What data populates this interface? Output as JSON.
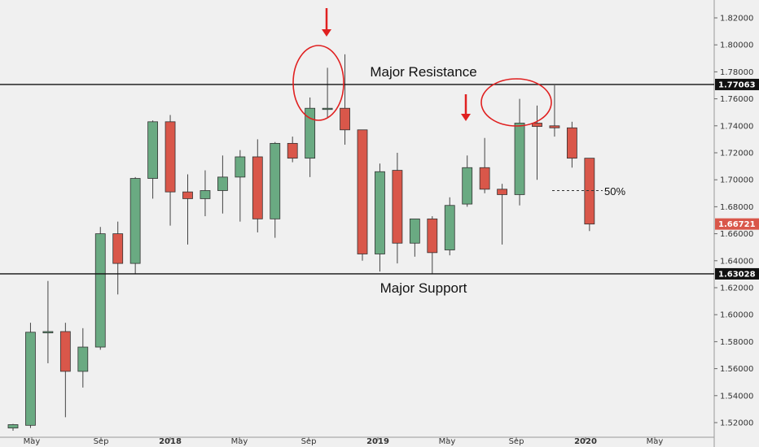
{
  "chart_data": {
    "type": "candlestick",
    "x_ticks": [
      "May",
      "Sep",
      "2018",
      "May",
      "Sep",
      "2019",
      "May",
      "Sep",
      "2020",
      "May"
    ],
    "y_ticks": [
      "1.52000",
      "1.54000",
      "1.56000",
      "1.58000",
      "1.60000",
      "1.62000",
      "1.64000",
      "1.66000",
      "1.68000",
      "1.70000",
      "1.72000",
      "1.74000",
      "1.76000",
      "1.78000",
      "1.80000",
      "1.82000"
    ],
    "ylim": [
      1.5155,
      1.8285
    ],
    "candles": [
      {
        "o": 1.516,
        "h": 1.519,
        "l": 1.514,
        "c": 1.5185
      },
      {
        "o": 1.518,
        "h": 1.594,
        "l": 1.516,
        "c": 1.587
      },
      {
        "o": 1.5865,
        "h": 1.625,
        "l": 1.564,
        "c": 1.5875
      },
      {
        "o": 1.5875,
        "h": 1.594,
        "l": 1.524,
        "c": 1.558
      },
      {
        "o": 1.558,
        "h": 1.59,
        "l": 1.546,
        "c": 1.576
      },
      {
        "o": 1.576,
        "h": 1.665,
        "l": 1.574,
        "c": 1.66
      },
      {
        "o": 1.66,
        "h": 1.669,
        "l": 1.615,
        "c": 1.638
      },
      {
        "o": 1.638,
        "h": 1.702,
        "l": 1.63,
        "c": 1.701
      },
      {
        "o": 1.701,
        "h": 1.744,
        "l": 1.686,
        "c": 1.743
      },
      {
        "o": 1.743,
        "h": 1.748,
        "l": 1.666,
        "c": 1.691
      },
      {
        "o": 1.691,
        "h": 1.704,
        "l": 1.652,
        "c": 1.686
      },
      {
        "o": 1.686,
        "h": 1.707,
        "l": 1.673,
        "c": 1.692
      },
      {
        "o": 1.692,
        "h": 1.718,
        "l": 1.675,
        "c": 1.702
      },
      {
        "o": 1.702,
        "h": 1.722,
        "l": 1.669,
        "c": 1.717
      },
      {
        "o": 1.717,
        "h": 1.73,
        "l": 1.661,
        "c": 1.671
      },
      {
        "o": 1.671,
        "h": 1.728,
        "l": 1.657,
        "c": 1.727
      },
      {
        "o": 1.727,
        "h": 1.732,
        "l": 1.713,
        "c": 1.716
      },
      {
        "o": 1.716,
        "h": 1.761,
        "l": 1.702,
        "c": 1.753
      },
      {
        "o": 1.753,
        "h": 1.783,
        "l": 1.746,
        "c": 1.753
      },
      {
        "o": 1.753,
        "h": 1.793,
        "l": 1.726,
        "c": 1.737
      },
      {
        "o": 1.737,
        "h": 1.736,
        "l": 1.64,
        "c": 1.645
      },
      {
        "o": 1.645,
        "h": 1.712,
        "l": 1.632,
        "c": 1.706
      },
      {
        "o": 1.707,
        "h": 1.72,
        "l": 1.638,
        "c": 1.653
      },
      {
        "o": 1.653,
        "h": 1.671,
        "l": 1.643,
        "c": 1.671
      },
      {
        "o": 1.671,
        "h": 1.673,
        "l": 1.63,
        "c": 1.646
      },
      {
        "o": 1.648,
        "h": 1.687,
        "l": 1.644,
        "c": 1.681
      },
      {
        "o": 1.682,
        "h": 1.718,
        "l": 1.68,
        "c": 1.709
      },
      {
        "o": 1.709,
        "h": 1.731,
        "l": 1.69,
        "c": 1.693
      },
      {
        "o": 1.693,
        "h": 1.697,
        "l": 1.652,
        "c": 1.689
      },
      {
        "o": 1.689,
        "h": 1.76,
        "l": 1.681,
        "c": 1.742
      },
      {
        "o": 1.742,
        "h": 1.755,
        "l": 1.7,
        "c": 1.7395
      },
      {
        "o": 1.74,
        "h": 1.77,
        "l": 1.732,
        "c": 1.7385
      },
      {
        "o": 1.7385,
        "h": 1.743,
        "l": 1.709,
        "c": 1.716
      },
      {
        "o": 1.716,
        "h": 1.716,
        "l": 1.662,
        "c": 1.6672
      }
    ],
    "lines": [
      {
        "name": "Major Resistance",
        "value": 1.77063,
        "label": "1.77063"
      },
      {
        "name": "Major Support",
        "value": 1.63028,
        "label": "1.63028"
      }
    ],
    "current_price": {
      "value": 1.66721,
      "label": "1.66721"
    },
    "fib_level": {
      "value": 1.692,
      "label": "50%"
    },
    "annotations": {
      "resistance_label": "Major Resistance",
      "support_label": "Major Support",
      "fib_label": "50%"
    },
    "colors": {
      "up": "#6aaa82",
      "down": "#d9574a",
      "wick": "#444444",
      "background": "#f0f0f0",
      "circle": "#e02020",
      "arrow": "#e02020",
      "price_badge": "#d9574a",
      "level_badge": "#111111"
    }
  }
}
